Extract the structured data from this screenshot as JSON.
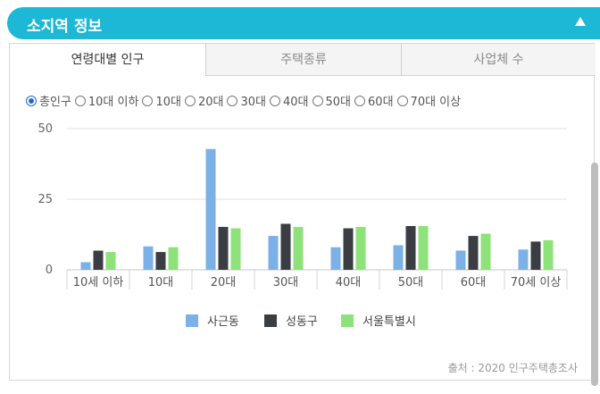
{
  "header": {
    "title": "소지역 정보"
  },
  "tabs": [
    {
      "label": "연령대별 인구",
      "active": true
    },
    {
      "label": "주택종류",
      "active": false
    },
    {
      "label": "사업체 수",
      "active": false
    }
  ],
  "radios": [
    {
      "label": "총인구",
      "checked": true
    },
    {
      "label": "10대 이하",
      "checked": false
    },
    {
      "label": "10대",
      "checked": false
    },
    {
      "label": "20대",
      "checked": false
    },
    {
      "label": "30대",
      "checked": false
    },
    {
      "label": "40대",
      "checked": false
    },
    {
      "label": "50대",
      "checked": false
    },
    {
      "label": "60대",
      "checked": false
    },
    {
      "label": "70대 이상",
      "checked": false
    }
  ],
  "source": "출처 : 2020 인구주택총조사",
  "chart_data": {
    "type": "bar",
    "categories": [
      "10세 이하",
      "10대",
      "20대",
      "30대",
      "40대",
      "50대",
      "60대",
      "70세 이상"
    ],
    "series": [
      {
        "name": "사근동",
        "color": "#7cb1e8",
        "values": [
          2.7,
          8.3,
          42.8,
          12.0,
          8.0,
          8.7,
          6.8,
          7.2
        ]
      },
      {
        "name": "성동구",
        "color": "#3a3d42",
        "values": [
          6.8,
          6.3,
          15.2,
          16.3,
          14.7,
          15.5,
          12.0,
          10.0
        ]
      },
      {
        "name": "서울특별시",
        "color": "#8ee27a",
        "values": [
          6.3,
          8.0,
          14.7,
          15.2,
          15.2,
          15.5,
          12.8,
          10.5
        ]
      }
    ],
    "yticks": [
      "50",
      "25",
      "0"
    ],
    "ylim": [
      0,
      50
    ],
    "grid": true,
    "legend": "bottom-center"
  }
}
